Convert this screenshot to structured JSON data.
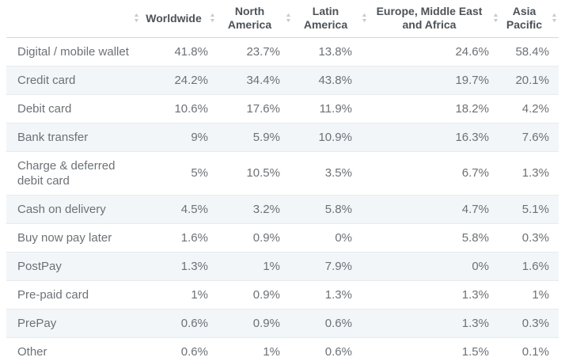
{
  "colors": {
    "header_text": "#4d5257",
    "body_text": "#6d7175",
    "stripe_background": "#f2f6f9",
    "row_border": "#e8ebed",
    "header_border": "#d3d7da",
    "sort_icon": "#c4cbd1"
  },
  "icons": {
    "sort_asc": "▲",
    "sort_desc": "▼"
  },
  "table": {
    "columns": [
      {
        "id": "payment-method",
        "label": ""
      },
      {
        "id": "worldwide",
        "label": "Worldwide"
      },
      {
        "id": "north-america",
        "label": "North America"
      },
      {
        "id": "latin-america",
        "label": "Latin America"
      },
      {
        "id": "emea",
        "label": "Europe, Middle East and Africa"
      },
      {
        "id": "asia-pacific",
        "label": "Asia Pacific"
      }
    ],
    "rows": [
      {
        "label": "Digital / mobile wallet",
        "values": [
          "41.8%",
          "23.7%",
          "13.8%",
          "24.6%",
          "58.4%"
        ]
      },
      {
        "label": "Credit card",
        "values": [
          "24.2%",
          "34.4%",
          "43.8%",
          "19.7%",
          "20.1%"
        ]
      },
      {
        "label": "Debit card",
        "values": [
          "10.6%",
          "17.6%",
          "11.9%",
          "18.2%",
          "4.2%"
        ]
      },
      {
        "label": "Bank transfer",
        "values": [
          "9%",
          "5.9%",
          "10.9%",
          "16.3%",
          "7.6%"
        ]
      },
      {
        "label": "Charge & deferred debit card",
        "values": [
          "5%",
          "10.5%",
          "3.5%",
          "6.7%",
          "1.3%"
        ]
      },
      {
        "label": "Cash on delivery",
        "values": [
          "4.5%",
          "3.2%",
          "5.8%",
          "4.7%",
          "5.1%"
        ]
      },
      {
        "label": "Buy now pay later",
        "values": [
          "1.6%",
          "0.9%",
          "0%",
          "5.8%",
          "0.3%"
        ]
      },
      {
        "label": "PostPay",
        "values": [
          "1.3%",
          "1%",
          "7.9%",
          "0%",
          "1.6%"
        ]
      },
      {
        "label": "Pre-paid card",
        "values": [
          "1%",
          "0.9%",
          "1.3%",
          "1.3%",
          "1%"
        ]
      },
      {
        "label": "PrePay",
        "values": [
          "0.6%",
          "0.9%",
          "0.6%",
          "1.3%",
          "0.3%"
        ]
      },
      {
        "label": "Other",
        "values": [
          "0.6%",
          "1%",
          "0.6%",
          "1.5%",
          "0.1%"
        ]
      }
    ]
  }
}
